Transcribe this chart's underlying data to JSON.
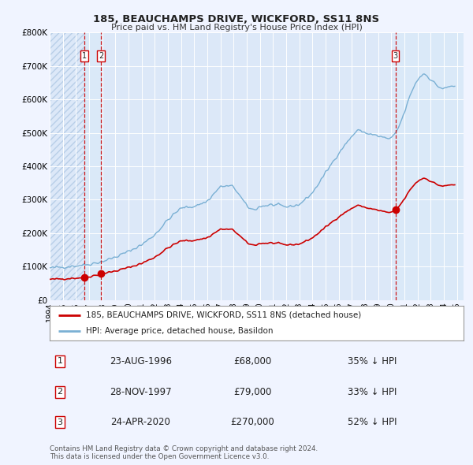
{
  "title": "185, BEAUCHAMPS DRIVE, WICKFORD, SS11 8NS",
  "subtitle": "Price paid vs. HM Land Registry's House Price Index (HPI)",
  "background_color": "#f0f4ff",
  "plot_bg_color": "#dce8f8",
  "grid_color": "#ffffff",
  "ylim": [
    0,
    800000
  ],
  "yticks": [
    0,
    100000,
    200000,
    300000,
    400000,
    500000,
    600000,
    700000,
    800000
  ],
  "ytick_labels": [
    "£0",
    "£100K",
    "£200K",
    "£300K",
    "£400K",
    "£500K",
    "£600K",
    "£700K",
    "£800K"
  ],
  "xlim_start": 1994.0,
  "xlim_end": 2025.5,
  "xticks": [
    1994,
    1995,
    1996,
    1997,
    1998,
    1999,
    2000,
    2001,
    2002,
    2003,
    2004,
    2005,
    2006,
    2007,
    2008,
    2009,
    2010,
    2011,
    2012,
    2013,
    2014,
    2015,
    2016,
    2017,
    2018,
    2019,
    2020,
    2021,
    2022,
    2023,
    2024,
    2025
  ],
  "sale_color": "#cc0000",
  "hpi_color": "#7ab0d4",
  "vline_color": "#cc0000",
  "shade_color": "#daeaf8",
  "sale_dates_decimal": [
    1996.64,
    1997.91,
    2020.31
  ],
  "sale_prices": [
    68000,
    79000,
    270000
  ],
  "sale_labels": [
    "1",
    "2",
    "3"
  ],
  "legend_entries": [
    "185, BEAUCHAMPS DRIVE, WICKFORD, SS11 8NS (detached house)",
    "HPI: Average price, detached house, Basildon"
  ],
  "table_rows": [
    {
      "num": "1",
      "date": "23-AUG-1996",
      "price": "£68,000",
      "hpi": "35% ↓ HPI"
    },
    {
      "num": "2",
      "date": "28-NOV-1997",
      "price": "£79,000",
      "hpi": "33% ↓ HPI"
    },
    {
      "num": "3",
      "date": "24-APR-2020",
      "price": "£270,000",
      "hpi": "52% ↓ HPI"
    }
  ],
  "footnote1": "Contains HM Land Registry data © Crown copyright and database right 2024.",
  "footnote2": "This data is licensed under the Open Government Licence v3.0."
}
